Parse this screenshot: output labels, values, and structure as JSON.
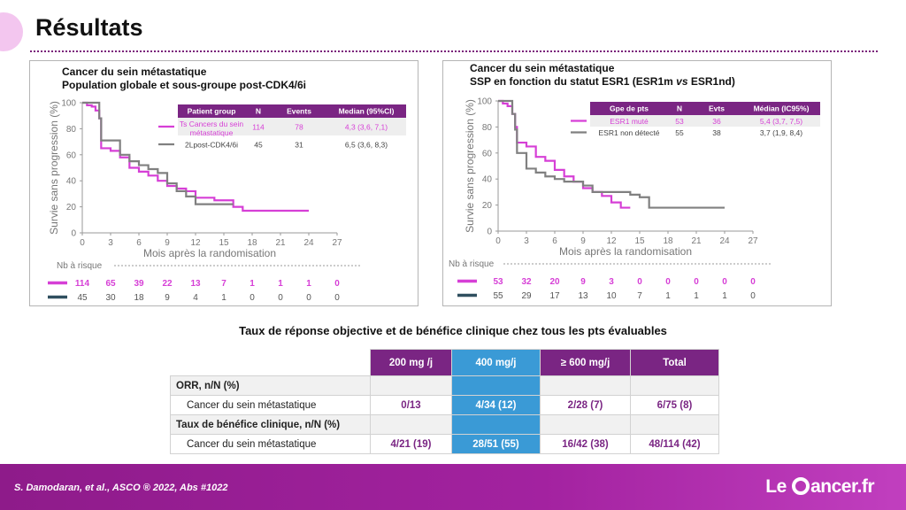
{
  "header": {
    "title": "Résultats"
  },
  "left_panel": {
    "title_line1": "Cancer du sein métastatique",
    "title_line2": "Population globale et sous-groupe post-CDK4/6i",
    "ylabel": "Survie sans progression (%)",
    "xlabel": "Mois après la randomisation",
    "risk_label": "Nb à risque",
    "table": {
      "headers": [
        "Patient group",
        "N",
        "Events",
        "Median (95%CI)"
      ],
      "rows": [
        [
          "Ts Cancers du sein métastatique",
          "114",
          "78",
          "4,3 (3,6, 7,1)"
        ],
        [
          "2Lpost-CDK4/6i",
          "45",
          "31",
          "6,5 (3,6, 8,3)"
        ]
      ]
    },
    "risk": [
      [
        "114",
        "65",
        "39",
        "22",
        "13",
        "7",
        "1",
        "1",
        "1",
        "0"
      ],
      [
        "45",
        "30",
        "18",
        "9",
        "4",
        "1",
        "0",
        "0",
        "0",
        "0"
      ]
    ]
  },
  "right_panel": {
    "title_line1": "Cancer du sein métastatique",
    "title_line2_a": "SSP en fonction du statut ESR1 (ESR1m ",
    "title_line2_vs": "vs",
    "title_line2_b": " ESR1nd)",
    "ylabel": "Survie sans progression (%)",
    "xlabel": "Mois après la randomisation",
    "risk_label": "Nb à risque",
    "table": {
      "headers": [
        "Gpe de pts",
        "N",
        "Evts",
        "Médian (IC95%)"
      ],
      "rows": [
        [
          "ESR1 muté",
          "53",
          "36",
          "5,4 (3,7, 7,5)"
        ],
        [
          "ESR1 non détecté",
          "55",
          "38",
          "3,7 (1,9, 8,4)"
        ]
      ]
    },
    "risk": [
      [
        "53",
        "32",
        "20",
        "9",
        "3",
        "0",
        "0",
        "0",
        "0",
        "0"
      ],
      [
        "55",
        "29",
        "17",
        "13",
        "10",
        "7",
        "1",
        "1",
        "1",
        "0"
      ]
    ]
  },
  "response": {
    "title": "Taux de réponse objective et de bénéfice clinique chez tous les pts évaluables",
    "columns": [
      "200 mg /j",
      "400 mg/j",
      "≥ 600 mg/j",
      "Total"
    ],
    "orr_header": "ORR, n/N (%)",
    "orr_label": "Cancer du sein métastatique",
    "orr_values": [
      "0/13",
      "4/34 (12)",
      "2/28 (7)",
      "6/75 (8)"
    ],
    "cbr_header": "Taux de bénéfice clinique, n/N (%)",
    "cbr_label": "Cancer du sein métastatique",
    "cbr_values": [
      "4/21 (19)",
      "28/51 (55)",
      "16/42 (38)",
      "48/114 (42)"
    ]
  },
  "footer": {
    "citation": "S. Damodaran, et al.,  ASCO ® 2022, Abs #1022",
    "logo_left": "Le",
    "logo_right": "ancer.fr"
  },
  "colors": {
    "magenta": "#d63fd6",
    "grey": "#808080",
    "dark": "#2f4f5f",
    "purple": "#7a2583",
    "blue": "#3a9ad6"
  },
  "chart_data": [
    {
      "type": "line",
      "xlabel": "Mois après la randomisation",
      "ylabel": "Survie sans progression (%)",
      "xlim": [
        0,
        27
      ],
      "ylim": [
        0,
        100
      ],
      "xticks": [
        0,
        3,
        6,
        9,
        12,
        15,
        18,
        21,
        24,
        27
      ],
      "yticks": [
        0,
        20,
        40,
        60,
        80,
        100
      ],
      "series": [
        {
          "name": "Ts Cancers du sein métastatique",
          "color": "#d63fd6",
          "step": true,
          "x": [
            0,
            0.5,
            1,
            1.4,
            1.8,
            2,
            3,
            4,
            5,
            6,
            7,
            8,
            9,
            10,
            11,
            12,
            13,
            14,
            15,
            16,
            17,
            24
          ],
          "y": [
            100,
            98,
            97,
            94,
            88,
            65,
            63,
            58,
            50,
            47,
            44,
            40,
            36,
            34,
            32,
            27,
            27,
            25,
            25,
            20,
            17,
            17
          ]
        },
        {
          "name": "2Lpost-CDK4/6i",
          "color": "#808080",
          "step": true,
          "x": [
            0,
            1.8,
            2,
            3,
            4,
            5,
            6,
            7,
            8,
            9,
            10,
            11,
            12,
            16
          ],
          "y": [
            100,
            88,
            71,
            71,
            60,
            55,
            52,
            49,
            46,
            38,
            32,
            28,
            22,
            22
          ]
        }
      ]
    },
    {
      "type": "line",
      "xlabel": "Mois après la randomisation",
      "ylabel": "Survie sans progression (%)",
      "xlim": [
        0,
        27
      ],
      "ylim": [
        0,
        100
      ],
      "xticks": [
        0,
        3,
        6,
        9,
        12,
        15,
        18,
        21,
        24,
        27
      ],
      "yticks": [
        0,
        20,
        40,
        60,
        80,
        100
      ],
      "series": [
        {
          "name": "ESR1 muté",
          "color": "#d63fd6",
          "step": true,
          "x": [
            0,
            0.5,
            1,
            1.5,
            1.8,
            2,
            3,
            4,
            5,
            6,
            7,
            8,
            9,
            10,
            11,
            12,
            13,
            14
          ],
          "y": [
            100,
            98,
            96,
            90,
            80,
            68,
            65,
            57,
            54,
            47,
            42,
            38,
            33,
            30,
            27,
            22,
            18,
            18
          ]
        },
        {
          "name": "ESR1 non détecté",
          "color": "#808080",
          "step": true,
          "x": [
            0,
            1.5,
            1.8,
            2,
            3,
            4,
            5,
            6,
            7,
            9,
            10,
            14,
            15,
            16,
            24
          ],
          "y": [
            100,
            90,
            78,
            60,
            48,
            45,
            42,
            40,
            38,
            35,
            30,
            28,
            26,
            18,
            18
          ]
        }
      ]
    }
  ]
}
